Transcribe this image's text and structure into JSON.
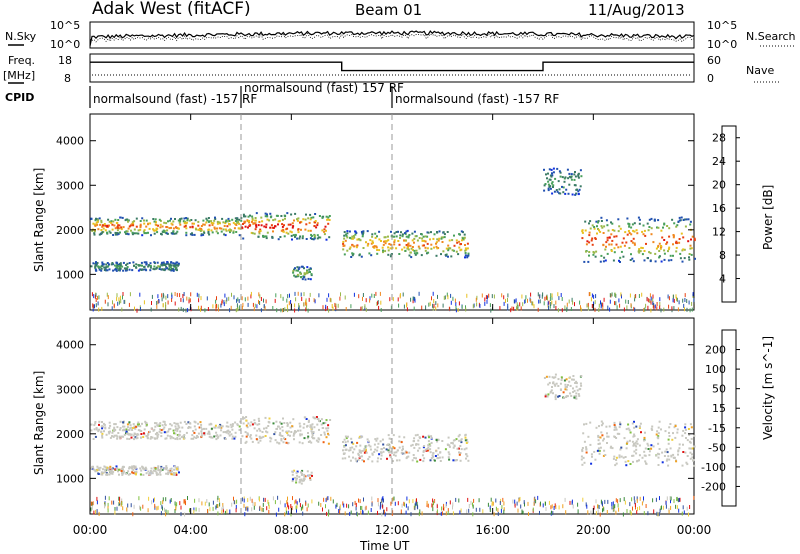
{
  "header": {
    "title": "Adak West (fitACF)",
    "beam": "Beam 01",
    "date": "11/Aug/2013"
  },
  "status_panels": {
    "nsky_label": "N.Sky",
    "nsky_ticks": [
      "10^5",
      "10^0"
    ],
    "nsearch_label": "N.Search",
    "nsearch_ticks": [
      "10^5",
      "10^0"
    ],
    "freq_label": "Freq.",
    "freq_unit": "[MHz]",
    "freq_ticks": [
      "18",
      "8"
    ],
    "nave_label": "Nave",
    "nave_ticks": [
      "60",
      "0"
    ],
    "cpid_label": "CPID",
    "cpid_segments": [
      {
        "label": "normalsound (fast) -157 RF",
        "start_h": 0,
        "end_h": 6
      },
      {
        "label": "normalsound (fast) 157 RF",
        "start_h": 6,
        "end_h": 12
      },
      {
        "label": "normalsound (fast) -157 RF",
        "start_h": 12,
        "end_h": 24
      }
    ],
    "frequency_steps": [
      {
        "start_h": 0,
        "end_h": 10,
        "level": 0.85
      },
      {
        "start_h": 10,
        "end_h": 18,
        "level": 0.55
      },
      {
        "start_h": 18,
        "end_h": 24,
        "level": 0.85
      }
    ]
  },
  "colors": {
    "power_scale": [
      "#1030e0",
      "#2050b0",
      "#3a7a64",
      "#48a05a",
      "#9ab84a",
      "#e8c020",
      "#f08820",
      "#e84010",
      "#e01010"
    ],
    "velocity_scale": [
      "#1030e0",
      "#3050a0",
      "#3a8a3a",
      "#80c040",
      "#c8c8c0",
      "#f0d040",
      "#f0a020",
      "#f06010",
      "#e01010"
    ],
    "ground_scatter": "#c8c8c0"
  },
  "chart_data": [
    {
      "type": "heatmap",
      "name": "power-panel",
      "title": "",
      "xlabel": "Time UT",
      "ylabel": "Slant Range [km]",
      "x_ticks": [
        "00:00",
        "04:00",
        "08:00",
        "12:00",
        "16:00",
        "20:00",
        "00:00"
      ],
      "xlim_hours": [
        0,
        24
      ],
      "y_ticks": [
        1000,
        2000,
        3000,
        4000
      ],
      "ylim_km": [
        200,
        4600
      ],
      "colorbar": {
        "label": "Power [dB]",
        "ticks": [
          4,
          8,
          12,
          16,
          20,
          24,
          28
        ],
        "range": [
          0,
          30
        ]
      },
      "echo_bands": [
        {
          "start_h": 0.0,
          "end_h": 6.0,
          "range_km": [
            1900,
            2300
          ],
          "peak_db": 24
        },
        {
          "start_h": 6.0,
          "end_h": 9.5,
          "range_km": [
            1800,
            2400
          ],
          "peak_db": 28
        },
        {
          "start_h": 10.0,
          "end_h": 15.0,
          "range_km": [
            1400,
            2000
          ],
          "peak_db": 22
        },
        {
          "start_h": 0.0,
          "end_h": 3.5,
          "range_km": [
            1100,
            1300
          ],
          "peak_db": 8
        },
        {
          "start_h": 8.0,
          "end_h": 8.8,
          "range_km": [
            900,
            1200
          ],
          "peak_db": 12
        },
        {
          "start_h": 18.0,
          "end_h": 19.5,
          "range_km": [
            2800,
            3400
          ],
          "peak_db": 8
        },
        {
          "start_h": 19.5,
          "end_h": 24.0,
          "range_km": [
            1300,
            2300
          ],
          "peak_db": 26
        }
      ]
    },
    {
      "type": "heatmap",
      "name": "velocity-panel",
      "title": "",
      "xlabel": "Time UT",
      "ylabel": "Slant Range [km]",
      "x_ticks": [
        "00:00",
        "04:00",
        "08:00",
        "12:00",
        "16:00",
        "20:00",
        "00:00"
      ],
      "xlim_hours": [
        0,
        24
      ],
      "y_ticks": [
        1000,
        2000,
        3000,
        4000
      ],
      "ylim_km": [
        200,
        4600
      ],
      "colorbar": {
        "label": "Velocity [m s^-1]",
        "ticks": [
          200,
          100,
          50,
          15,
          -15,
          -50,
          -100,
          -200
        ],
        "range": [
          -250,
          250
        ]
      }
    }
  ]
}
